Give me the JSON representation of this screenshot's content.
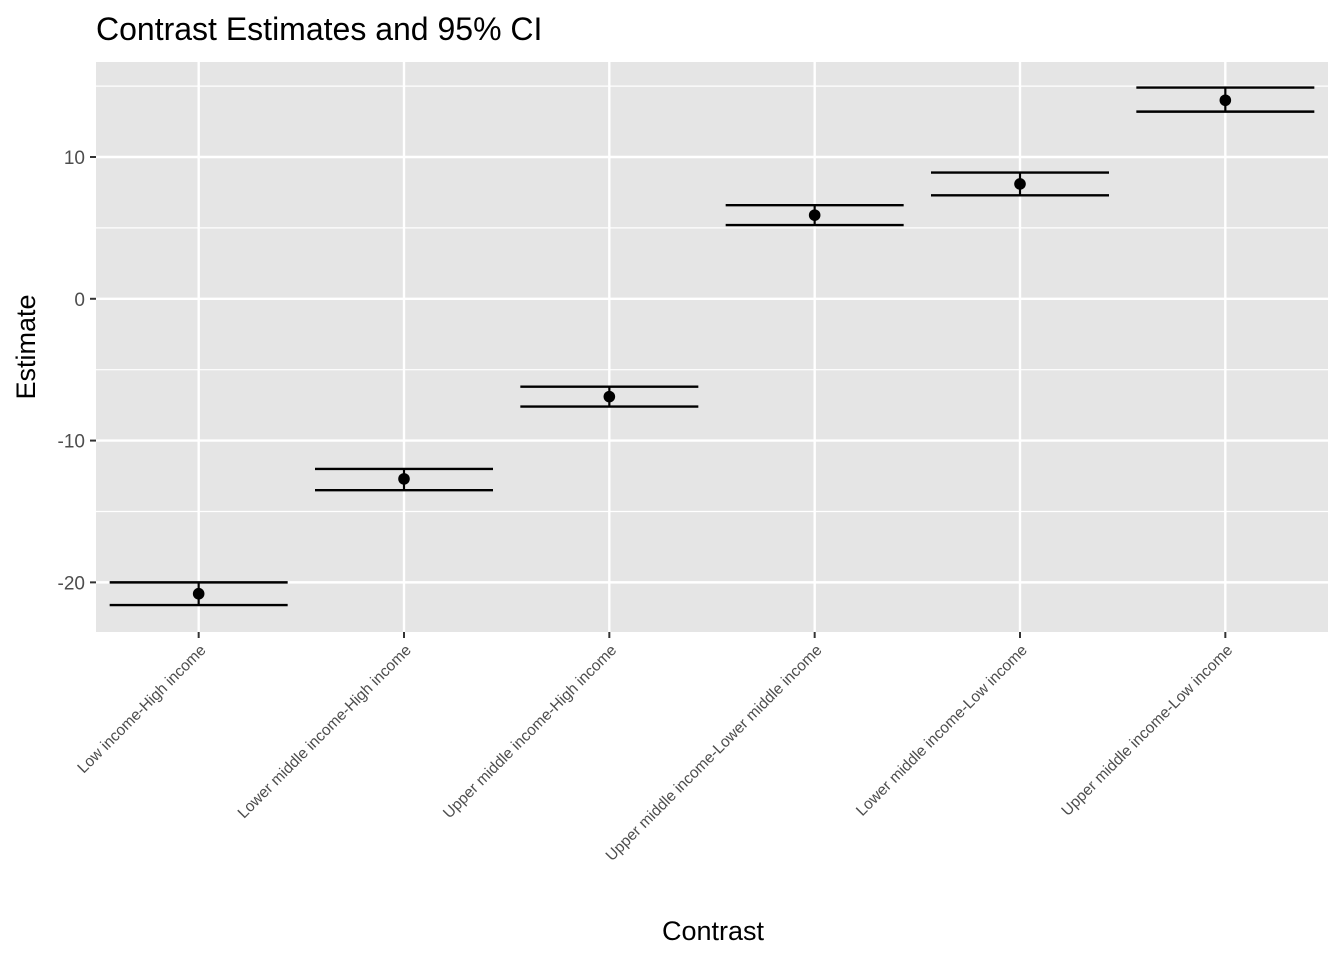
{
  "chart_data": {
    "type": "errorbar",
    "title": "Contrast Estimates and 95% CI",
    "xlabel": "Contrast",
    "ylabel": "Estimate",
    "categories": [
      "Low income-High income",
      "Lower middle income-High income",
      "Upper middle income-High income",
      "Upper middle income-Lower middle income",
      "Lower middle income-Low income",
      "Upper middle income-Low income"
    ],
    "estimates": [
      -20.8,
      -12.7,
      -6.9,
      5.9,
      8.1,
      14.0
    ],
    "ci_lower": [
      -21.6,
      -13.5,
      -7.6,
      5.2,
      7.3,
      13.2
    ],
    "ci_upper": [
      -20.0,
      -12.0,
      -6.2,
      6.6,
      8.9,
      14.9
    ],
    "ylim": [
      -23.5,
      16.7
    ],
    "yticks": [
      -20,
      -10,
      0,
      10
    ],
    "ytick_labels": [
      "-20",
      "-10",
      "0",
      "10"
    ],
    "grid": true,
    "colors": {
      "panel_background": "#e5e5e5",
      "grid_line": "#ffffff",
      "mark": "#000000",
      "tick_text": "#4d4d4d"
    }
  }
}
